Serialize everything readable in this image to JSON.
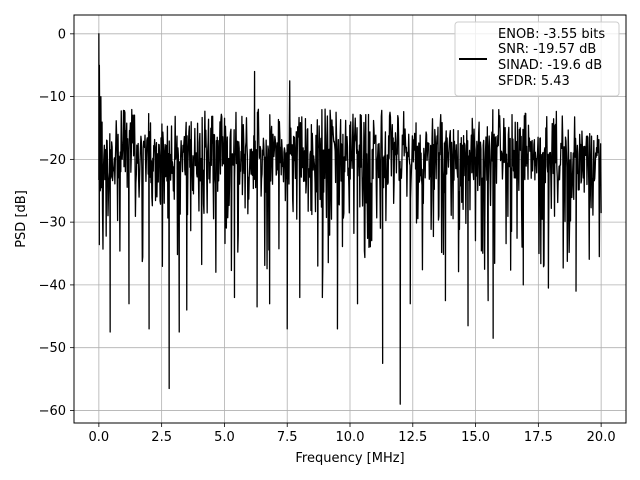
{
  "chart_data": {
    "type": "line",
    "xlabel": "Frequency [MHz]",
    "ylabel": "PSD [dB]",
    "xlim": [
      -0.99,
      20.99
    ],
    "ylim": [
      -62.0,
      3.0
    ],
    "xticks": [
      0.0,
      2.5,
      5.0,
      7.5,
      10.0,
      12.5,
      15.0,
      17.5,
      20.0
    ],
    "xtick_labels": [
      "0.0",
      "2.5",
      "5.0",
      "7.5",
      "10.0",
      "12.5",
      "15.0",
      "17.5",
      "20.0"
    ],
    "yticks": [
      0,
      -10,
      -20,
      -30,
      -40,
      -50,
      -60
    ],
    "ytick_labels": [
      "0",
      "−10",
      "−20",
      "−30",
      "−40",
      "−50",
      "−60"
    ],
    "grid": true,
    "legend_position": "top-right",
    "series": [
      {
        "legend": [
          "ENOB: -3.55 bits",
          "SNR: -19.57 dB",
          "SINAD: -19.6 dB",
          "SFDR: 5.43"
        ],
        "color": "#000000",
        "noise_floor_db": -20,
        "noise_band_db": [
          -12,
          -30
        ],
        "peaks": [
          {
            "x": 0.0,
            "y": 0.0
          },
          {
            "x": 0.02,
            "y": -5.0
          },
          {
            "x": 0.08,
            "y": -10.0
          },
          {
            "x": 6.2,
            "y": -6.0
          },
          {
            "x": 7.6,
            "y": -7.5
          }
        ],
        "dips": [
          {
            "x": 0.45,
            "y": -47.5
          },
          {
            "x": 1.2,
            "y": -43.0
          },
          {
            "x": 2.0,
            "y": -47.0
          },
          {
            "x": 2.8,
            "y": -56.5
          },
          {
            "x": 3.2,
            "y": -47.5
          },
          {
            "x": 3.5,
            "y": -44.0
          },
          {
            "x": 5.4,
            "y": -42.0
          },
          {
            "x": 6.3,
            "y": -43.5
          },
          {
            "x": 6.8,
            "y": -43.0
          },
          {
            "x": 7.5,
            "y": -47.0
          },
          {
            "x": 8.0,
            "y": -42.0
          },
          {
            "x": 8.9,
            "y": -42.0
          },
          {
            "x": 9.5,
            "y": -47.0
          },
          {
            "x": 10.3,
            "y": -43.0
          },
          {
            "x": 11.3,
            "y": -52.5
          },
          {
            "x": 12.0,
            "y": -59.0
          },
          {
            "x": 12.4,
            "y": -43.0
          },
          {
            "x": 13.8,
            "y": -42.5
          },
          {
            "x": 14.7,
            "y": -46.5
          },
          {
            "x": 15.5,
            "y": -42.5
          },
          {
            "x": 15.7,
            "y": -48.5
          },
          {
            "x": 16.9,
            "y": -40.0
          },
          {
            "x": 17.9,
            "y": -40.5
          },
          {
            "x": 19.0,
            "y": -41.0
          }
        ]
      }
    ]
  }
}
